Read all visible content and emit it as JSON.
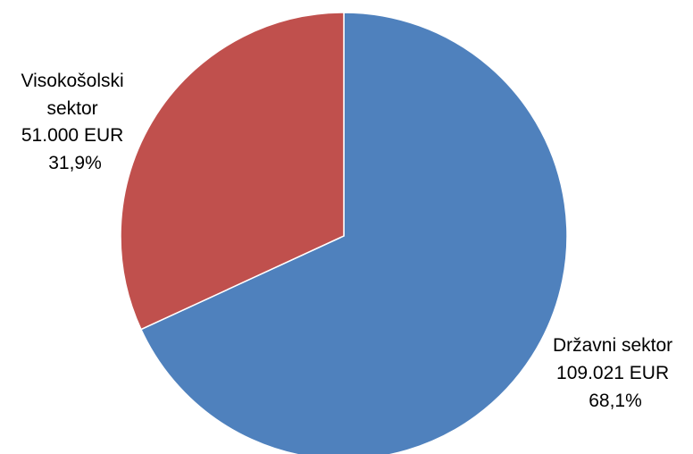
{
  "chart_data": {
    "type": "pie",
    "title": "",
    "slices": [
      {
        "name": "Državni sektor",
        "value": 109021,
        "value_label": "109.021 EUR",
        "percent": 68.1,
        "percent_label": "68,1%",
        "color": "#4F81BD"
      },
      {
        "name": "Visokošolski sektor",
        "value": 51000,
        "value_label": "51.000 EUR",
        "percent": 31.9,
        "percent_label": "31,9%",
        "color": "#C0504D"
      }
    ],
    "start_angle": "12 o'clock",
    "direction": "clockwise",
    "legend": "none",
    "data_labels": "outside"
  }
}
